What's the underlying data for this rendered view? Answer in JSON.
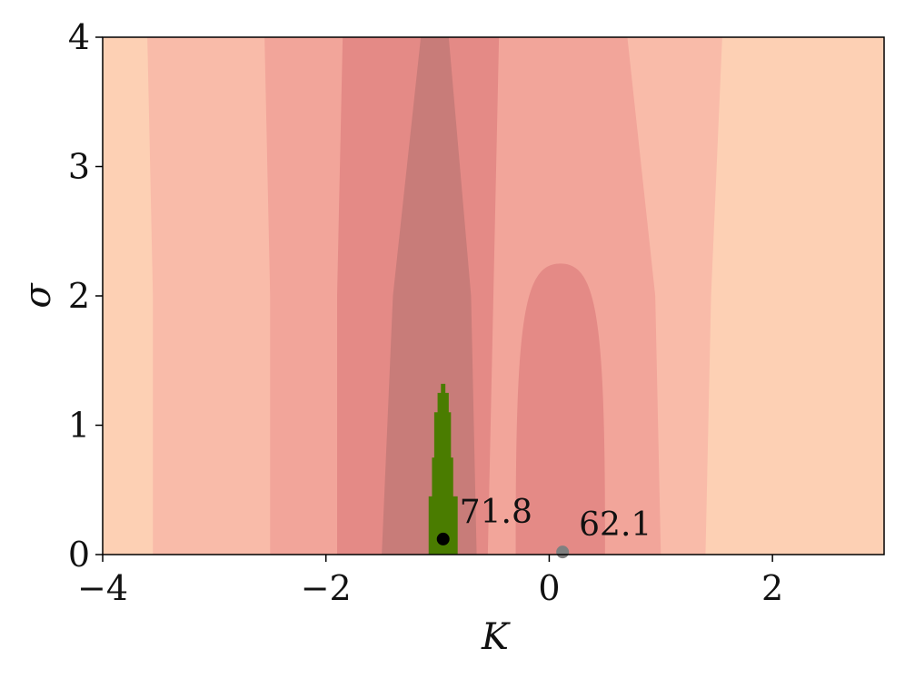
{
  "chart_data": {
    "type": "heatmap",
    "xlabel": "K",
    "ylabel": "σ",
    "xlim": [
      -4,
      3
    ],
    "ylim": [
      0,
      4
    ],
    "xticks": [
      {
        "value": -4,
        "label": "−4"
      },
      {
        "value": -2,
        "label": "−2"
      },
      {
        "value": 0,
        "label": "0"
      },
      {
        "value": 2,
        "label": "2"
      }
    ],
    "yticks": [
      {
        "value": 0,
        "label": "0"
      },
      {
        "value": 1,
        "label": "1"
      },
      {
        "value": 2,
        "label": "2"
      },
      {
        "value": 3,
        "label": "3"
      },
      {
        "value": 4,
        "label": "4"
      }
    ],
    "grid": false,
    "colormap_levels": [
      "#fdd0b4",
      "#f9bba9",
      "#f2a59a",
      "#e48a86",
      "#c87c79"
    ],
    "background_color": "#fdd0b4",
    "contour_regions": [
      {
        "level": 1,
        "color": "#f9bba9",
        "left": [
          [
            -3.6,
            4
          ],
          [
            -3.55,
            2
          ],
          [
            -3.55,
            0
          ]
        ],
        "right": [
          [
            1.55,
            4
          ],
          [
            1.45,
            2
          ],
          [
            1.4,
            0
          ]
        ]
      },
      {
        "level": 2,
        "color": "#f2a59a",
        "left": [
          [
            -2.55,
            4
          ],
          [
            -2.5,
            2
          ],
          [
            -2.5,
            0
          ]
        ],
        "right": [
          [
            0.7,
            4
          ],
          [
            0.95,
            2
          ],
          [
            1.0,
            0
          ]
        ]
      },
      {
        "level": 3,
        "color": "#e48a86",
        "left": [
          [
            -1.85,
            4
          ],
          [
            -1.9,
            2
          ],
          [
            -1.9,
            0
          ]
        ],
        "right": [
          [
            -0.45,
            4
          ],
          [
            -0.5,
            2
          ],
          [
            -0.55,
            0
          ]
        ]
      },
      {
        "level": 4,
        "color": "#c87c79",
        "left": [
          [
            -1.15,
            4
          ],
          [
            -1.4,
            2
          ],
          [
            -1.5,
            0
          ]
        ],
        "right": [
          [
            -0.9,
            4
          ],
          [
            -0.7,
            2
          ],
          [
            -0.65,
            0
          ]
        ]
      }
    ],
    "secondary_region": {
      "color": "#e48a86",
      "peak": [
        0.1,
        2.25
      ],
      "left_base": -0.3,
      "right_base": 0.5
    },
    "feasible_region": {
      "color": "#4a7c00",
      "outline": [
        [
          -1.08,
          0
        ],
        [
          -1.08,
          0.45
        ],
        [
          -1.05,
          0.45
        ],
        [
          -1.05,
          0.75
        ],
        [
          -1.03,
          0.75
        ],
        [
          -1.03,
          1.1
        ],
        [
          -1.0,
          1.1
        ],
        [
          -1.0,
          1.25
        ],
        [
          -0.97,
          1.25
        ],
        [
          -0.97,
          1.32
        ],
        [
          -0.93,
          1.32
        ],
        [
          -0.93,
          1.25
        ],
        [
          -0.9,
          1.25
        ],
        [
          -0.9,
          1.1
        ],
        [
          -0.88,
          1.1
        ],
        [
          -0.88,
          0.75
        ],
        [
          -0.86,
          0.75
        ],
        [
          -0.86,
          0.45
        ],
        [
          -0.82,
          0.45
        ],
        [
          -0.82,
          0
        ]
      ]
    },
    "points": [
      {
        "x": -0.95,
        "y": 0.12,
        "color": "#000000",
        "label": "71.8"
      },
      {
        "x": 0.12,
        "y": 0.02,
        "color": "#808080",
        "label": "62.1"
      }
    ]
  }
}
